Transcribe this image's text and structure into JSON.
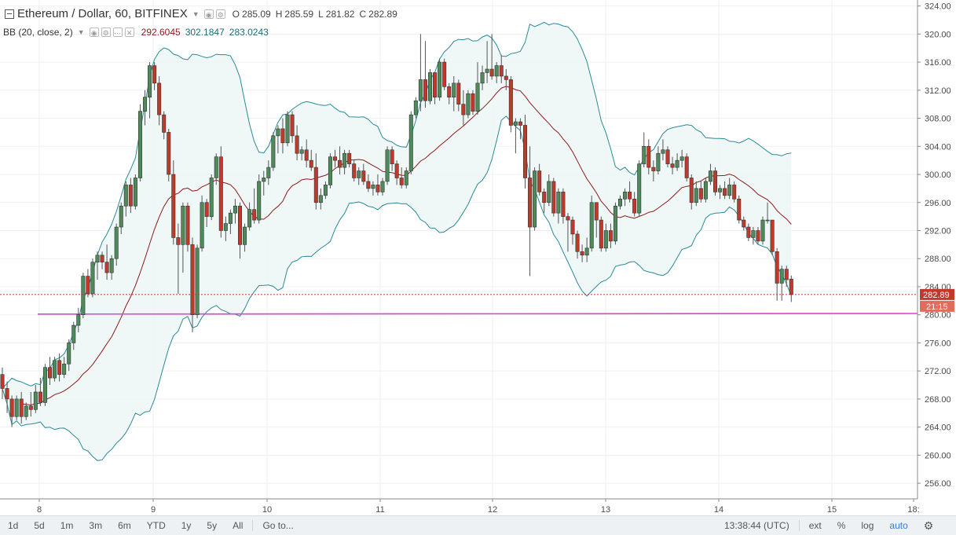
{
  "header": {
    "symbol": "Ethereum / Dollar, 60, BITFINEX",
    "open_label": "O",
    "open": "285.09",
    "high_label": "H",
    "high": "285.59",
    "low_label": "L",
    "low": "281.82",
    "close_label": "C",
    "close": "282.89"
  },
  "indicator": {
    "name": "BB (20, close, 2)",
    "basis": "292.6045",
    "upper": "302.1847",
    "lower": "283.0243"
  },
  "price_badge": "282.89",
  "countdown_badge": "21:15",
  "colors": {
    "up": "#4f8a5b",
    "down": "#c0392b",
    "band_fill": "#eef6f6",
    "band_line": "#2a8a96",
    "basis_line": "#8b1a1a",
    "support_line": "#d946d0",
    "price_line": "#c0392b"
  },
  "toolbar": {
    "ranges": [
      "1d",
      "5d",
      "1m",
      "3m",
      "6m",
      "YTD",
      "1y",
      "5y",
      "All"
    ],
    "goto": "Go to...",
    "clock": "13:38:44 (UTC)",
    "ext": "ext",
    "pct": "%",
    "log": "log",
    "auto": "auto",
    "settings_icon": "gear-icon"
  },
  "chart_data": {
    "type": "candlestick",
    "y_ticks": [
      256,
      260,
      264,
      268,
      272,
      276,
      280,
      284,
      288,
      292,
      296,
      300,
      304,
      308,
      312,
      316,
      320,
      324
    ],
    "y_tick_labels": [
      "256.00",
      "260.00",
      "264.00",
      "268.00",
      "272.00",
      "276.00",
      "280.00",
      "284.00",
      "288.00",
      "292.00",
      "296.00",
      "300.00",
      "304.00",
      "308.00",
      "312.00",
      "316.00",
      "320.00",
      "324.00"
    ],
    "x_ticks": [
      "8",
      "9",
      "10",
      "11",
      "12",
      "13",
      "14",
      "15",
      "18:"
    ],
    "support_level": 280.1,
    "last_price": 282.89,
    "ylim": [
      254,
      325
    ],
    "candles": [
      {
        "o": 271.5,
        "h": 272.5,
        "l": 268,
        "c": 269.5
      },
      {
        "o": 269.5,
        "h": 270.5,
        "l": 266,
        "c": 268
      },
      {
        "o": 268,
        "h": 268.5,
        "l": 264,
        "c": 265.5
      },
      {
        "o": 265.5,
        "h": 268.5,
        "l": 265,
        "c": 268
      },
      {
        "o": 268,
        "h": 269,
        "l": 264.5,
        "c": 265.5
      },
      {
        "o": 265.5,
        "h": 267.5,
        "l": 265,
        "c": 267
      },
      {
        "o": 267,
        "h": 269,
        "l": 265.5,
        "c": 266.5
      },
      {
        "o": 266.5,
        "h": 270,
        "l": 266,
        "c": 269
      },
      {
        "o": 269,
        "h": 271,
        "l": 267,
        "c": 267.5
      },
      {
        "o": 267.5,
        "h": 273,
        "l": 267,
        "c": 272.5
      },
      {
        "o": 272.5,
        "h": 274,
        "l": 270,
        "c": 271
      },
      {
        "o": 271,
        "h": 274,
        "l": 270.5,
        "c": 273.5
      },
      {
        "o": 273.5,
        "h": 274.5,
        "l": 270.5,
        "c": 271.5
      },
      {
        "o": 271.5,
        "h": 274,
        "l": 271,
        "c": 273
      },
      {
        "o": 273,
        "h": 276.5,
        "l": 272,
        "c": 276
      },
      {
        "o": 276,
        "h": 279,
        "l": 275,
        "c": 278.5
      },
      {
        "o": 278.5,
        "h": 281,
        "l": 277.5,
        "c": 280
      },
      {
        "o": 280,
        "h": 286,
        "l": 279.5,
        "c": 285.5
      },
      {
        "o": 285.5,
        "h": 286.5,
        "l": 282.5,
        "c": 283
      },
      {
        "o": 283,
        "h": 288,
        "l": 282.5,
        "c": 287.5
      },
      {
        "o": 287.5,
        "h": 289,
        "l": 285,
        "c": 288.5
      },
      {
        "o": 288.5,
        "h": 289,
        "l": 286.5,
        "c": 287.5
      },
      {
        "o": 287.5,
        "h": 290,
        "l": 285,
        "c": 286
      },
      {
        "o": 286,
        "h": 288.5,
        "l": 285,
        "c": 288
      },
      {
        "o": 288,
        "h": 293,
        "l": 287,
        "c": 292.5
      },
      {
        "o": 292.5,
        "h": 296,
        "l": 291.5,
        "c": 295.5
      },
      {
        "o": 295.5,
        "h": 299,
        "l": 294,
        "c": 298.5
      },
      {
        "o": 298.5,
        "h": 299.5,
        "l": 294.5,
        "c": 295.5
      },
      {
        "o": 295.5,
        "h": 300,
        "l": 295,
        "c": 299.5
      },
      {
        "o": 299.5,
        "h": 310,
        "l": 299,
        "c": 309
      },
      {
        "o": 309,
        "h": 312,
        "l": 307,
        "c": 311
      },
      {
        "o": 311,
        "h": 316,
        "l": 308,
        "c": 315.5
      },
      {
        "o": 315.5,
        "h": 316,
        "l": 312,
        "c": 313
      },
      {
        "o": 313,
        "h": 314,
        "l": 307,
        "c": 308.5
      },
      {
        "o": 308.5,
        "h": 309,
        "l": 305,
        "c": 306
      },
      {
        "o": 306,
        "h": 306.5,
        "l": 299,
        "c": 300
      },
      {
        "o": 300,
        "h": 302,
        "l": 290,
        "c": 291
      },
      {
        "o": 291,
        "h": 293,
        "l": 283,
        "c": 290
      },
      {
        "o": 290,
        "h": 296,
        "l": 286,
        "c": 295.5
      },
      {
        "o": 295.5,
        "h": 296,
        "l": 289,
        "c": 290
      },
      {
        "o": 290,
        "h": 291,
        "l": 277.5,
        "c": 280
      },
      {
        "o": 280,
        "h": 290,
        "l": 279.5,
        "c": 289.5
      },
      {
        "o": 289.5,
        "h": 297,
        "l": 289,
        "c": 296
      },
      {
        "o": 296,
        "h": 296.5,
        "l": 292.5,
        "c": 294
      },
      {
        "o": 294,
        "h": 300,
        "l": 293.5,
        "c": 299.5
      },
      {
        "o": 299.5,
        "h": 303,
        "l": 298.5,
        "c": 302.5
      },
      {
        "o": 302.5,
        "h": 304,
        "l": 291,
        "c": 292
      },
      {
        "o": 292,
        "h": 294,
        "l": 290.5,
        "c": 293
      },
      {
        "o": 293,
        "h": 295,
        "l": 291.5,
        "c": 294.5
      },
      {
        "o": 294.5,
        "h": 296.5,
        "l": 293,
        "c": 295.5
      },
      {
        "o": 295.5,
        "h": 296,
        "l": 288,
        "c": 290
      },
      {
        "o": 290,
        "h": 293,
        "l": 289,
        "c": 292.5
      },
      {
        "o": 292.5,
        "h": 296,
        "l": 292,
        "c": 295
      },
      {
        "o": 295,
        "h": 298,
        "l": 293,
        "c": 293.5
      },
      {
        "o": 293.5,
        "h": 300,
        "l": 293,
        "c": 299
      },
      {
        "o": 299,
        "h": 300.5,
        "l": 297,
        "c": 299.5
      },
      {
        "o": 299.5,
        "h": 302,
        "l": 298.5,
        "c": 301
      },
      {
        "o": 301,
        "h": 306,
        "l": 300.5,
        "c": 305.5
      },
      {
        "o": 305.5,
        "h": 307,
        "l": 303,
        "c": 306.5
      },
      {
        "o": 306.5,
        "h": 308,
        "l": 303,
        "c": 304.5
      },
      {
        "o": 304.5,
        "h": 309,
        "l": 304,
        "c": 308.5
      },
      {
        "o": 308.5,
        "h": 309,
        "l": 304.5,
        "c": 305.5
      },
      {
        "o": 305.5,
        "h": 307,
        "l": 302,
        "c": 303
      },
      {
        "o": 303,
        "h": 304,
        "l": 302,
        "c": 303.5
      },
      {
        "o": 303.5,
        "h": 305,
        "l": 301,
        "c": 302
      },
      {
        "o": 302,
        "h": 303.5,
        "l": 300.5,
        "c": 301
      },
      {
        "o": 301,
        "h": 303,
        "l": 295,
        "c": 296
      },
      {
        "o": 296,
        "h": 298,
        "l": 295,
        "c": 297
      },
      {
        "o": 297,
        "h": 299,
        "l": 296.5,
        "c": 298.5
      },
      {
        "o": 298.5,
        "h": 303,
        "l": 298,
        "c": 302.5
      },
      {
        "o": 302.5,
        "h": 303.5,
        "l": 301,
        "c": 302
      },
      {
        "o": 302,
        "h": 304,
        "l": 300,
        "c": 301
      },
      {
        "o": 301,
        "h": 303.5,
        "l": 300,
        "c": 303
      },
      {
        "o": 303,
        "h": 303.5,
        "l": 301,
        "c": 301.5
      },
      {
        "o": 301.5,
        "h": 302,
        "l": 299,
        "c": 299.5
      },
      {
        "o": 299.5,
        "h": 301,
        "l": 298.5,
        "c": 300.5
      },
      {
        "o": 300.5,
        "h": 301.5,
        "l": 298.5,
        "c": 299
      },
      {
        "o": 299,
        "h": 300,
        "l": 297.5,
        "c": 298
      },
      {
        "o": 298,
        "h": 299,
        "l": 297,
        "c": 298.5
      },
      {
        "o": 298.5,
        "h": 300,
        "l": 297,
        "c": 297.5
      },
      {
        "o": 297.5,
        "h": 299.5,
        "l": 297,
        "c": 299
      },
      {
        "o": 299,
        "h": 304,
        "l": 298.5,
        "c": 303.5
      },
      {
        "o": 303.5,
        "h": 304,
        "l": 300.5,
        "c": 301.5
      },
      {
        "o": 301.5,
        "h": 302,
        "l": 298.5,
        "c": 299.5
      },
      {
        "o": 299.5,
        "h": 301,
        "l": 298,
        "c": 298.5
      },
      {
        "o": 298.5,
        "h": 301,
        "l": 298,
        "c": 300.5
      },
      {
        "o": 300.5,
        "h": 309,
        "l": 300,
        "c": 308.5
      },
      {
        "o": 308.5,
        "h": 311,
        "l": 308,
        "c": 310.5
      },
      {
        "o": 310.5,
        "h": 320,
        "l": 309,
        "c": 313.5
      },
      {
        "o": 313.5,
        "h": 319,
        "l": 309.5,
        "c": 310.5
      },
      {
        "o": 310.5,
        "h": 315,
        "l": 310,
        "c": 314.5
      },
      {
        "o": 314.5,
        "h": 314.5,
        "l": 310,
        "c": 311
      },
      {
        "o": 311,
        "h": 316.5,
        "l": 310.5,
        "c": 316
      },
      {
        "o": 316,
        "h": 316.5,
        "l": 312,
        "c": 312.5
      },
      {
        "o": 312.5,
        "h": 313,
        "l": 310,
        "c": 311
      },
      {
        "o": 311,
        "h": 314,
        "l": 309,
        "c": 313
      },
      {
        "o": 313,
        "h": 313.5,
        "l": 309,
        "c": 310
      },
      {
        "o": 310,
        "h": 312,
        "l": 307,
        "c": 308.5
      },
      {
        "o": 308.5,
        "h": 312,
        "l": 308,
        "c": 311.5
      },
      {
        "o": 311.5,
        "h": 312,
        "l": 308.5,
        "c": 309
      },
      {
        "o": 309,
        "h": 316,
        "l": 308.5,
        "c": 313
      },
      {
        "o": 313,
        "h": 315.5,
        "l": 312,
        "c": 314.5
      },
      {
        "o": 314.5,
        "h": 319,
        "l": 313,
        "c": 315
      },
      {
        "o": 315,
        "h": 320,
        "l": 313.5,
        "c": 314
      },
      {
        "o": 314,
        "h": 316,
        "l": 313,
        "c": 315.5
      },
      {
        "o": 315.5,
        "h": 317,
        "l": 313,
        "c": 314
      },
      {
        "o": 314,
        "h": 315,
        "l": 312,
        "c": 313.5
      },
      {
        "o": 313.5,
        "h": 314,
        "l": 306,
        "c": 307
      },
      {
        "o": 307,
        "h": 308,
        "l": 303,
        "c": 307.5
      },
      {
        "o": 307.5,
        "h": 308,
        "l": 305,
        "c": 307
      },
      {
        "o": 307,
        "h": 308.5,
        "l": 298,
        "c": 299.5
      },
      {
        "o": 299.5,
        "h": 304,
        "l": 285.5,
        "c": 292.5
      },
      {
        "o": 292.5,
        "h": 301,
        "l": 292,
        "c": 300.5
      },
      {
        "o": 300.5,
        "h": 301.5,
        "l": 297,
        "c": 297.5
      },
      {
        "o": 297.5,
        "h": 298,
        "l": 294.5,
        "c": 296
      },
      {
        "o": 296,
        "h": 300,
        "l": 295.5,
        "c": 299
      },
      {
        "o": 299,
        "h": 299.5,
        "l": 294,
        "c": 294.5
      },
      {
        "o": 294.5,
        "h": 298,
        "l": 293,
        "c": 297.5
      },
      {
        "o": 297.5,
        "h": 298,
        "l": 293,
        "c": 294
      },
      {
        "o": 294,
        "h": 294.5,
        "l": 289,
        "c": 293.5
      },
      {
        "o": 293.5,
        "h": 294,
        "l": 290,
        "c": 291.5
      },
      {
        "o": 291.5,
        "h": 292,
        "l": 288,
        "c": 289
      },
      {
        "o": 289,
        "h": 290,
        "l": 287.5,
        "c": 288.5
      },
      {
        "o": 288.5,
        "h": 291,
        "l": 287.5,
        "c": 289.5
      },
      {
        "o": 289.5,
        "h": 297,
        "l": 289,
        "c": 296
      },
      {
        "o": 296,
        "h": 296,
        "l": 291,
        "c": 293.5
      },
      {
        "o": 293.5,
        "h": 294,
        "l": 289,
        "c": 289.5
      },
      {
        "o": 289.5,
        "h": 293,
        "l": 289,
        "c": 292
      },
      {
        "o": 292,
        "h": 293,
        "l": 289.5,
        "c": 290.5
      },
      {
        "o": 290.5,
        "h": 296,
        "l": 290,
        "c": 295.5
      },
      {
        "o": 295.5,
        "h": 297,
        "l": 295,
        "c": 296.5
      },
      {
        "o": 296.5,
        "h": 298,
        "l": 295.5,
        "c": 297.5
      },
      {
        "o": 297.5,
        "h": 299,
        "l": 296,
        "c": 296.5
      },
      {
        "o": 296.5,
        "h": 297.5,
        "l": 294,
        "c": 294.5
      },
      {
        "o": 294.5,
        "h": 302,
        "l": 294,
        "c": 301.5
      },
      {
        "o": 301.5,
        "h": 306,
        "l": 301,
        "c": 304
      },
      {
        "o": 304,
        "h": 305,
        "l": 300,
        "c": 301
      },
      {
        "o": 301,
        "h": 302,
        "l": 299,
        "c": 300.5
      },
      {
        "o": 300.5,
        "h": 304,
        "l": 300,
        "c": 303
      },
      {
        "o": 303,
        "h": 305,
        "l": 302,
        "c": 303.5
      },
      {
        "o": 303.5,
        "h": 304,
        "l": 301,
        "c": 301.5
      },
      {
        "o": 301.5,
        "h": 302.5,
        "l": 300,
        "c": 301
      },
      {
        "o": 301,
        "h": 303,
        "l": 300.5,
        "c": 302
      },
      {
        "o": 302,
        "h": 303.5,
        "l": 301,
        "c": 302.5
      },
      {
        "o": 302.5,
        "h": 303,
        "l": 299,
        "c": 299.5
      },
      {
        "o": 299.5,
        "h": 300,
        "l": 295,
        "c": 296
      },
      {
        "o": 296,
        "h": 299,
        "l": 295.5,
        "c": 298
      },
      {
        "o": 298,
        "h": 299,
        "l": 296,
        "c": 296.5
      },
      {
        "o": 296.5,
        "h": 299.5,
        "l": 296,
        "c": 299
      },
      {
        "o": 299,
        "h": 301.5,
        "l": 298.5,
        "c": 300.5
      },
      {
        "o": 300.5,
        "h": 301,
        "l": 297,
        "c": 297.5
      },
      {
        "o": 297.5,
        "h": 298.5,
        "l": 296.5,
        "c": 298
      },
      {
        "o": 298,
        "h": 299,
        "l": 296.5,
        "c": 297
      },
      {
        "o": 297,
        "h": 299.5,
        "l": 296.5,
        "c": 298.5
      },
      {
        "o": 298.5,
        "h": 299,
        "l": 296,
        "c": 296.5
      },
      {
        "o": 296.5,
        "h": 297,
        "l": 293,
        "c": 293.5
      },
      {
        "o": 293.5,
        "h": 294,
        "l": 292,
        "c": 292.5
      },
      {
        "o": 292.5,
        "h": 293,
        "l": 290.5,
        "c": 291
      },
      {
        "o": 291,
        "h": 292.5,
        "l": 290,
        "c": 292
      },
      {
        "o": 292,
        "h": 292.5,
        "l": 290,
        "c": 290.5
      },
      {
        "o": 290.5,
        "h": 294,
        "l": 290,
        "c": 293.5
      },
      {
        "o": 293.5,
        "h": 296,
        "l": 293,
        "c": 293.5
      },
      {
        "o": 293.5,
        "h": 293.5,
        "l": 288.5,
        "c": 289
      },
      {
        "o": 289,
        "h": 289.5,
        "l": 282,
        "c": 284.5
      },
      {
        "o": 284.5,
        "h": 287,
        "l": 282,
        "c": 286.5
      },
      {
        "o": 286.5,
        "h": 287,
        "l": 284,
        "c": 285
      },
      {
        "o": 285.09,
        "h": 285.59,
        "l": 281.82,
        "c": 282.89
      }
    ]
  }
}
